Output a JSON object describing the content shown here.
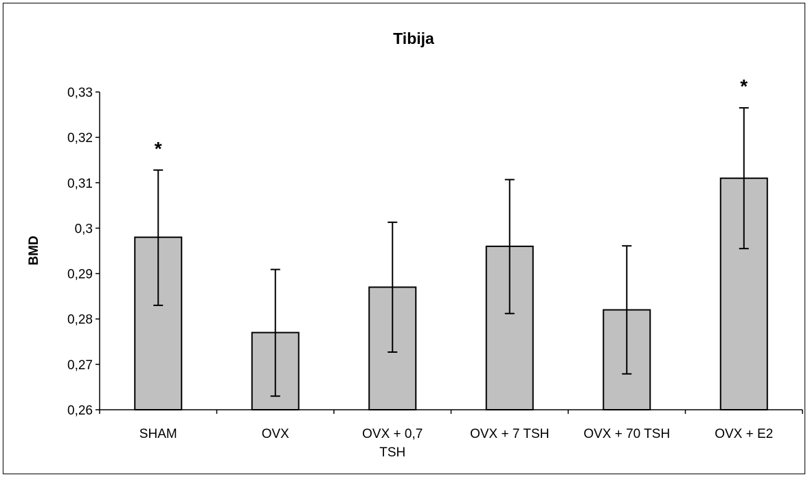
{
  "chart_data": {
    "type": "bar",
    "title": "Tibija",
    "xlabel": "",
    "ylabel": "BMD",
    "categories": [
      [
        "SHAM"
      ],
      [
        "OVX"
      ],
      [
        "OVX + 0,7",
        "TSH"
      ],
      [
        "OVX + 7 TSH"
      ],
      [
        "OVX + 70 TSH"
      ],
      [
        "OVX + E2"
      ]
    ],
    "values": [
      0.298,
      0.277,
      0.287,
      0.296,
      0.282,
      0.311
    ],
    "error_low": [
      0.283,
      0.263,
      0.2727,
      0.2812,
      0.2679,
      0.2955
    ],
    "error_high": [
      0.3128,
      0.2909,
      0.3013,
      0.3107,
      0.2961,
      0.3265
    ],
    "significance": [
      "*",
      "",
      "",
      "",
      "",
      "*"
    ],
    "ylim": [
      0.26,
      0.33
    ],
    "yticks": [
      0.26,
      0.27,
      0.28,
      0.29,
      0.3,
      0.31,
      0.32,
      0.33
    ],
    "ytick_labels": [
      "0,26",
      "0,27",
      "0,28",
      "0,29",
      "0,3",
      "0,31",
      "0,32",
      "0,33"
    ],
    "grid": false,
    "legend": "none",
    "bar_color": "#c0c0c0",
    "edge_color": "#000000"
  }
}
